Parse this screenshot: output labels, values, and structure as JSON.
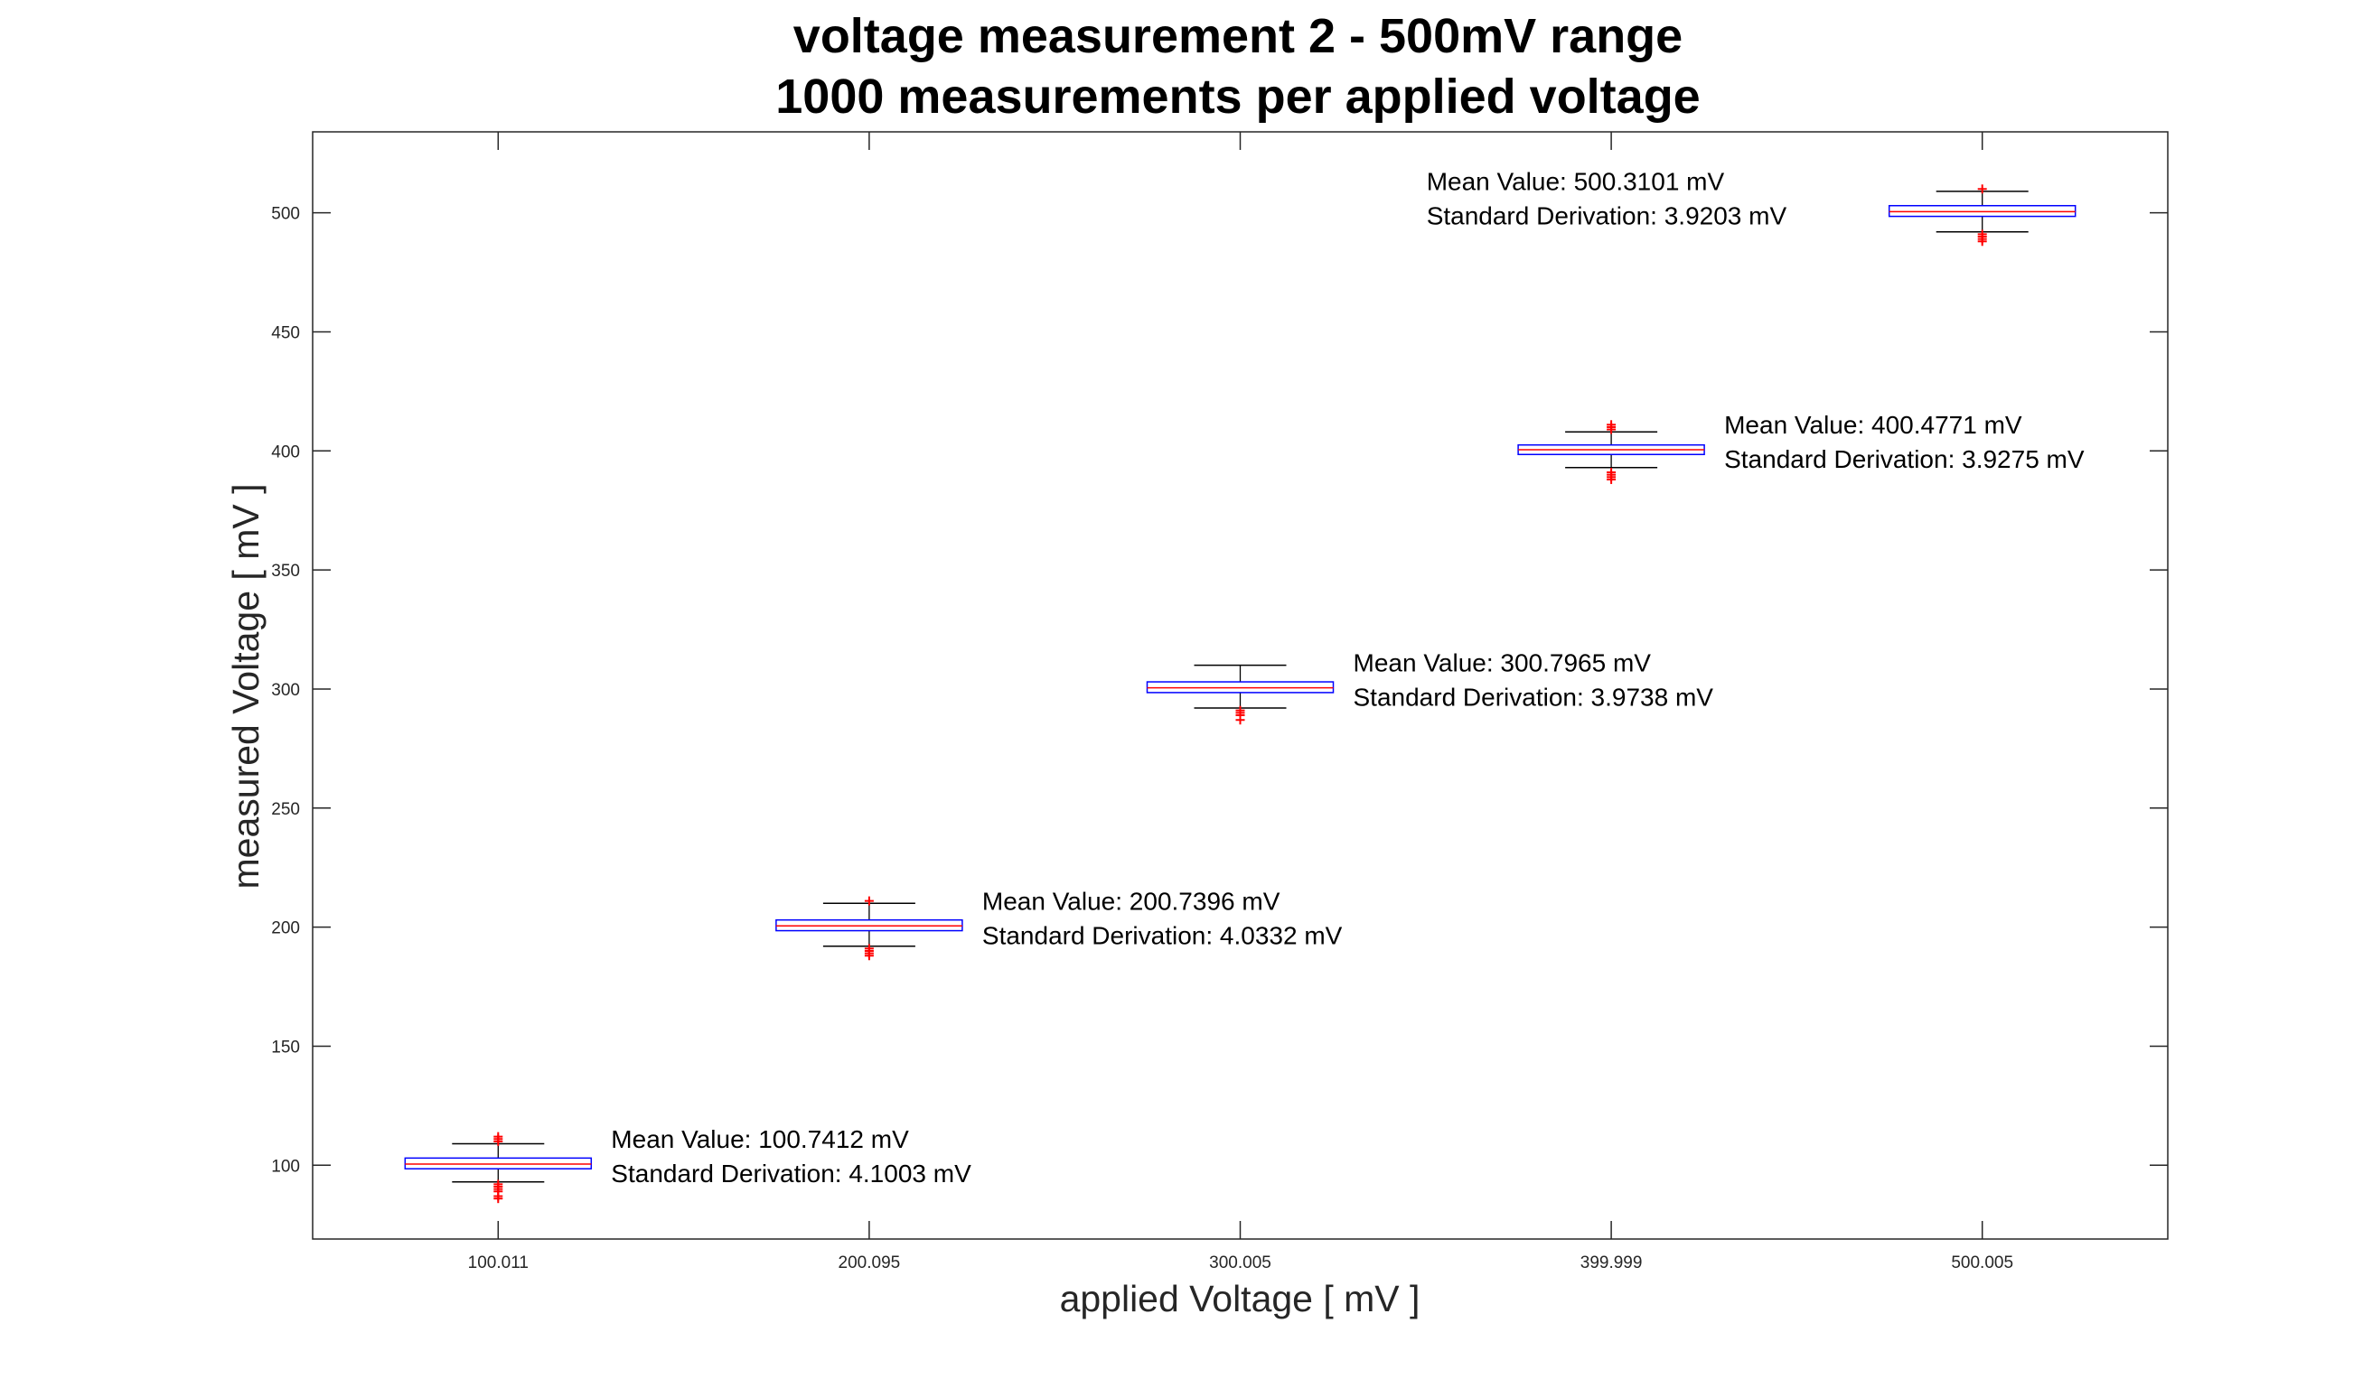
{
  "chart_data": {
    "type": "boxplot",
    "title": [
      "voltage measurement 2 - 500mV range",
      "1000 measurements per applied voltage"
    ],
    "xlabel": "applied Voltage [ mV ]",
    "ylabel": "measured Voltage [ mV ]",
    "ylim": [
      69,
      534
    ],
    "y_ticks": [
      100,
      150,
      200,
      250,
      300,
      350,
      400,
      450,
      500
    ],
    "categories": [
      "100.011",
      "200.095",
      "300.005",
      "399.999",
      "500.005"
    ],
    "grid": false,
    "colors": {
      "box": "#0000ff",
      "median": "#ff0000",
      "whisker": "#000000",
      "outlier": "#ff0000",
      "axes": "#262626"
    },
    "boxes": [
      {
        "category": "100.011",
        "whisker_low": 93,
        "q1": 98.5,
        "median": 100.5,
        "q3": 103,
        "whisker_high": 109,
        "outliers": [
          110,
          111,
          112,
          89,
          90,
          91,
          92,
          87,
          86
        ],
        "annotation": [
          "Mean Value:  100.7412 mV",
          "Standard Derivation:  4.1003 mV"
        ]
      },
      {
        "category": "200.095",
        "whisker_low": 192,
        "q1": 198.5,
        "median": 200.5,
        "q3": 203,
        "whisker_high": 210,
        "outliers": [
          211,
          191,
          190,
          189,
          188
        ],
        "annotation": [
          "Mean Value:  200.7396 mV",
          "Standard Derivation:  4.0332 mV"
        ]
      },
      {
        "category": "300.005",
        "whisker_low": 292,
        "q1": 298.5,
        "median": 300.5,
        "q3": 303,
        "whisker_high": 310,
        "outliers": [
          291,
          290,
          289,
          287
        ],
        "annotation": [
          "Mean Value:  300.7965 mV",
          "Standard Derivation:  3.9738 mV"
        ]
      },
      {
        "category": "399.999",
        "whisker_low": 393,
        "q1": 398.5,
        "median": 400.5,
        "q3": 402.5,
        "whisker_high": 408,
        "outliers": [
          409,
          410,
          411,
          391,
          390,
          389,
          388
        ],
        "annotation": [
          "Mean Value:  400.4771 mV",
          "Standard Derivation:  3.9275 mV"
        ]
      },
      {
        "category": "500.005",
        "whisker_low": 492,
        "q1": 498.5,
        "median": 500.5,
        "q3": 503,
        "whisker_high": 509,
        "outliers": [
          510,
          491,
          490,
          489,
          488
        ],
        "annotation": [
          "Mean Value:  500.3101 mV",
          "Standard Derivation:  3.9203 mV"
        ]
      }
    ]
  }
}
